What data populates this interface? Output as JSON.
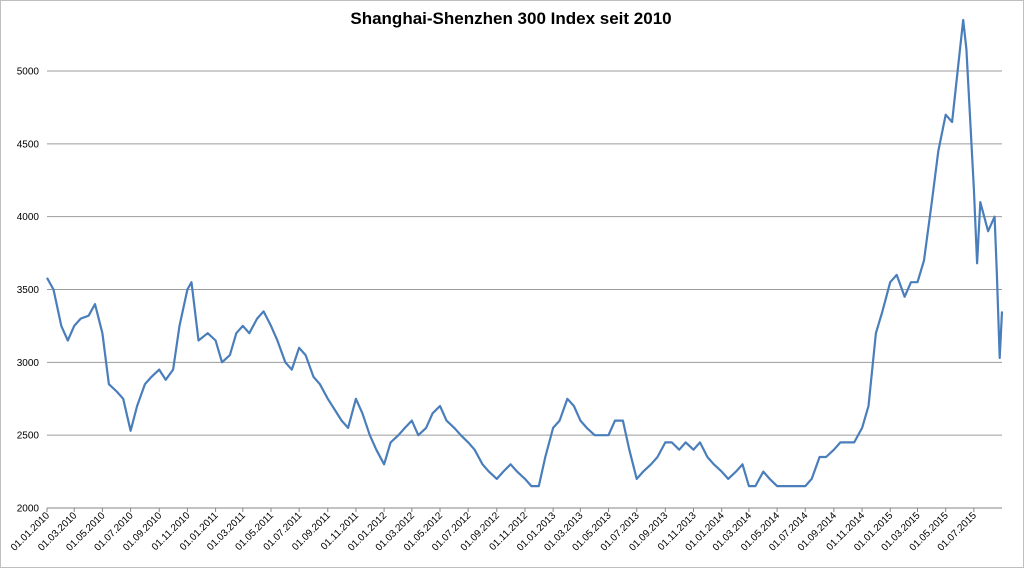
{
  "chart_data": {
    "type": "line",
    "title": "Shanghai-Shenzhen 300 Index seit 2010",
    "xlabel": "",
    "ylabel": "",
    "ylim": [
      2000,
      5000
    ],
    "yticks": [
      2000,
      2500,
      3000,
      3500,
      4000,
      4500,
      5000
    ],
    "xlim": [
      "01.01.2010",
      "31.08.2015"
    ],
    "grid": "horizontal",
    "legend": "none",
    "line_color": "#4a7ebb",
    "xtick_labels": [
      "01.01.2010",
      "01.03.2010",
      "01.05.2010",
      "01.07.2010",
      "01.09.2010",
      "01.11.2010",
      "01.01.2011",
      "01.03.2011",
      "01.05.2011",
      "01.07.2011",
      "01.09.2011",
      "01.11.2011",
      "01.01.2012",
      "01.03.2012",
      "01.05.2012",
      "01.07.2012",
      "01.09.2012",
      "01.11.2012",
      "01.01.2013",
      "01.03.2013",
      "01.05.2013",
      "01.07.2013",
      "01.09.2013",
      "01.11.2013",
      "01.01.2014",
      "01.03.2014",
      "01.05.2014",
      "01.07.2014",
      "01.09.2014",
      "01.11.2014",
      "01.01.2015",
      "01.03.2015",
      "01.05.2015",
      "01.07.2015"
    ],
    "series": [
      {
        "points": [
          [
            "01.01.2010",
            3580
          ],
          [
            "15.01.2010",
            3500
          ],
          [
            "01.02.2010",
            3250
          ],
          [
            "15.02.2010",
            3150
          ],
          [
            "01.03.2010",
            3250
          ],
          [
            "15.03.2010",
            3300
          ],
          [
            "01.04.2010",
            3320
          ],
          [
            "15.04.2010",
            3400
          ],
          [
            "01.05.2010",
            3200
          ],
          [
            "15.05.2010",
            2850
          ],
          [
            "01.06.2010",
            2800
          ],
          [
            "15.06.2010",
            2750
          ],
          [
            "01.07.2010",
            2530
          ],
          [
            "15.07.2010",
            2700
          ],
          [
            "01.08.2010",
            2850
          ],
          [
            "15.08.2010",
            2900
          ],
          [
            "01.09.2010",
            2950
          ],
          [
            "15.09.2010",
            2880
          ],
          [
            "01.10.2010",
            2950
          ],
          [
            "15.10.2010",
            3250
          ],
          [
            "01.11.2010",
            3500
          ],
          [
            "10.11.2010",
            3550
          ],
          [
            "25.11.2010",
            3150
          ],
          [
            "15.12.2010",
            3200
          ],
          [
            "01.01.2011",
            3150
          ],
          [
            "15.01.2011",
            3000
          ],
          [
            "01.02.2011",
            3050
          ],
          [
            "15.02.2011",
            3200
          ],
          [
            "01.03.2011",
            3250
          ],
          [
            "15.03.2011",
            3200
          ],
          [
            "01.04.2011",
            3300
          ],
          [
            "15.04.2011",
            3350
          ],
          [
            "01.05.2011",
            3250
          ],
          [
            "15.05.2011",
            3150
          ],
          [
            "01.06.2011",
            3000
          ],
          [
            "15.06.2011",
            2950
          ],
          [
            "01.07.2011",
            3100
          ],
          [
            "15.07.2011",
            3050
          ],
          [
            "01.08.2011",
            2900
          ],
          [
            "15.08.2011",
            2850
          ],
          [
            "01.09.2011",
            2750
          ],
          [
            "15.09.2011",
            2680
          ],
          [
            "01.10.2011",
            2600
          ],
          [
            "15.10.2011",
            2550
          ],
          [
            "01.11.2011",
            2750
          ],
          [
            "15.11.2011",
            2650
          ],
          [
            "01.12.2011",
            2500
          ],
          [
            "15.12.2011",
            2400
          ],
          [
            "01.01.2012",
            2300
          ],
          [
            "15.01.2012",
            2450
          ],
          [
            "01.02.2012",
            2500
          ],
          [
            "15.02.2012",
            2550
          ],
          [
            "01.03.2012",
            2600
          ],
          [
            "15.03.2012",
            2500
          ],
          [
            "01.04.2012",
            2550
          ],
          [
            "15.04.2012",
            2650
          ],
          [
            "01.05.2012",
            2700
          ],
          [
            "15.05.2012",
            2600
          ],
          [
            "01.06.2012",
            2550
          ],
          [
            "15.06.2012",
            2500
          ],
          [
            "01.07.2012",
            2450
          ],
          [
            "15.07.2012",
            2400
          ],
          [
            "01.08.2012",
            2300
          ],
          [
            "15.08.2012",
            2250
          ],
          [
            "01.09.2012",
            2200
          ],
          [
            "15.09.2012",
            2250
          ],
          [
            "01.10.2012",
            2300
          ],
          [
            "15.10.2012",
            2250
          ],
          [
            "01.11.2012",
            2200
          ],
          [
            "15.11.2012",
            2150
          ],
          [
            "01.12.2012",
            2150
          ],
          [
            "15.12.2012",
            2350
          ],
          [
            "01.01.2013",
            2550
          ],
          [
            "15.01.2013",
            2600
          ],
          [
            "01.02.2013",
            2750
          ],
          [
            "15.02.2013",
            2700
          ],
          [
            "01.03.2013",
            2600
          ],
          [
            "15.03.2013",
            2550
          ],
          [
            "01.04.2013",
            2500
          ],
          [
            "15.04.2013",
            2500
          ],
          [
            "01.05.2013",
            2500
          ],
          [
            "15.05.2013",
            2600
          ],
          [
            "01.06.2013",
            2600
          ],
          [
            "15.06.2013",
            2400
          ],
          [
            "01.07.2013",
            2200
          ],
          [
            "15.07.2013",
            2250
          ],
          [
            "01.08.2013",
            2300
          ],
          [
            "15.08.2013",
            2350
          ],
          [
            "01.09.2013",
            2450
          ],
          [
            "15.09.2013",
            2450
          ],
          [
            "01.10.2013",
            2400
          ],
          [
            "15.10.2013",
            2450
          ],
          [
            "01.11.2013",
            2400
          ],
          [
            "15.11.2013",
            2450
          ],
          [
            "01.12.2013",
            2350
          ],
          [
            "15.12.2013",
            2300
          ],
          [
            "01.01.2014",
            2250
          ],
          [
            "15.01.2014",
            2200
          ],
          [
            "01.02.2014",
            2250
          ],
          [
            "15.02.2014",
            2300
          ],
          [
            "01.03.2014",
            2150
          ],
          [
            "15.03.2014",
            2150
          ],
          [
            "01.04.2014",
            2250
          ],
          [
            "15.04.2014",
            2200
          ],
          [
            "01.05.2014",
            2150
          ],
          [
            "15.05.2014",
            2150
          ],
          [
            "01.06.2014",
            2150
          ],
          [
            "15.06.2014",
            2150
          ],
          [
            "01.07.2014",
            2150
          ],
          [
            "15.07.2014",
            2200
          ],
          [
            "01.08.2014",
            2350
          ],
          [
            "15.08.2014",
            2350
          ],
          [
            "01.09.2014",
            2400
          ],
          [
            "15.09.2014",
            2450
          ],
          [
            "01.10.2014",
            2450
          ],
          [
            "15.10.2014",
            2450
          ],
          [
            "01.11.2014",
            2550
          ],
          [
            "15.11.2014",
            2700
          ],
          [
            "01.12.2014",
            3200
          ],
          [
            "15.12.2014",
            3350
          ],
          [
            "01.01.2015",
            3550
          ],
          [
            "15.01.2015",
            3600
          ],
          [
            "01.02.2015",
            3450
          ],
          [
            "15.02.2015",
            3550
          ],
          [
            "01.03.2015",
            3550
          ],
          [
            "15.03.2015",
            3700
          ],
          [
            "01.04.2015",
            4100
          ],
          [
            "15.04.2015",
            4450
          ],
          [
            "01.05.2015",
            4700
          ],
          [
            "15.05.2015",
            4650
          ],
          [
            "01.06.2015",
            5150
          ],
          [
            "08.06.2015",
            5350
          ],
          [
            "15.06.2015",
            5150
          ],
          [
            "01.07.2015",
            4200
          ],
          [
            "08.07.2015",
            3680
          ],
          [
            "15.07.2015",
            4100
          ],
          [
            "01.08.2015",
            3900
          ],
          [
            "15.08.2015",
            4000
          ],
          [
            "20.08.2015",
            3600
          ],
          [
            "26.08.2015",
            3030
          ],
          [
            "31.08.2015",
            3350
          ]
        ]
      }
    ]
  }
}
